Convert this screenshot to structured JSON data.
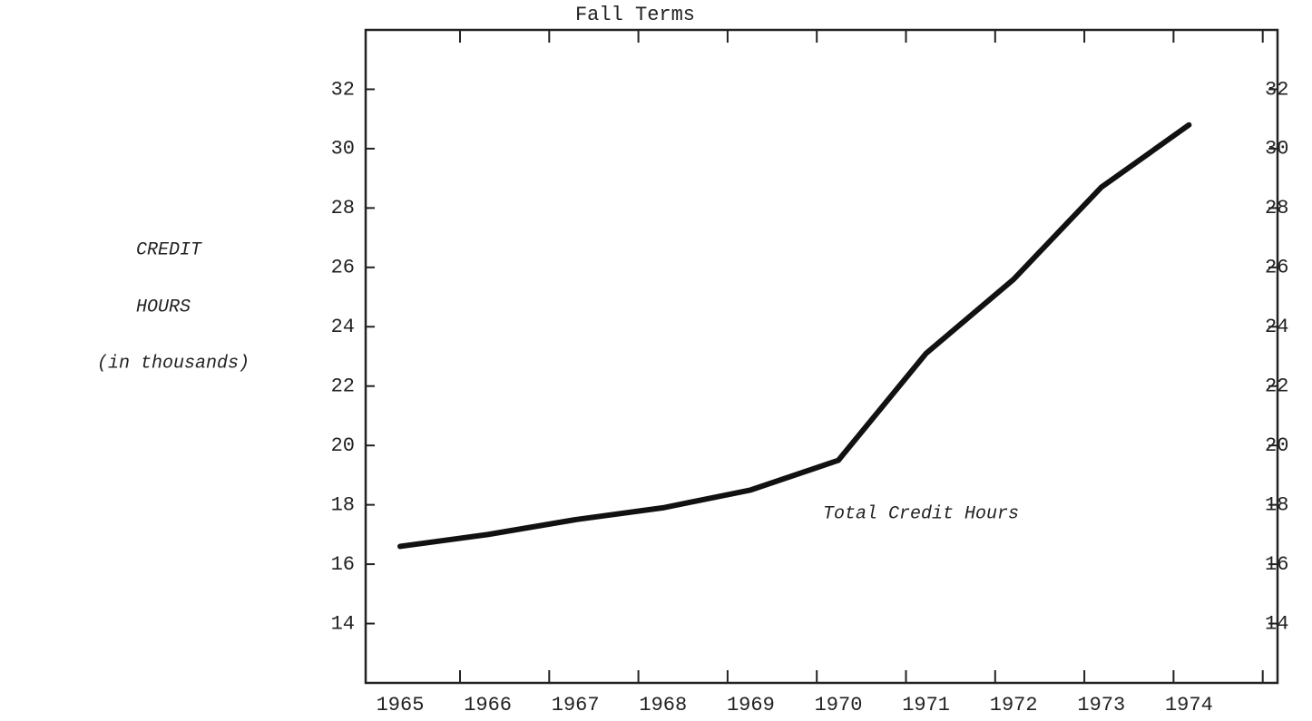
{
  "chart_data": {
    "type": "line",
    "title": "Fall Terms",
    "y_label_lines": [
      "CREDIT",
      "HOURS",
      "(in thousands)"
    ],
    "annotation": "Total Credit Hours",
    "categories": [
      "1965",
      "1966",
      "1967",
      "1968",
      "1969",
      "1970",
      "1971",
      "1972",
      "1973",
      "1974"
    ],
    "series": [
      {
        "name": "Total Credit Hours",
        "color": "#111111",
        "values": [
          16.6,
          17.0,
          17.5,
          17.9,
          18.5,
          19.5,
          23.1,
          25.6,
          28.7,
          30.8
        ]
      }
    ],
    "ylim": [
      12,
      34
    ],
    "yticks": [
      14,
      16,
      18,
      20,
      22,
      24,
      26,
      28,
      30,
      32
    ],
    "y2lim": [
      12,
      34
    ],
    "y2ticks": [
      14,
      16,
      18,
      20,
      22,
      24,
      26,
      28,
      30,
      32
    ],
    "grid": false
  }
}
